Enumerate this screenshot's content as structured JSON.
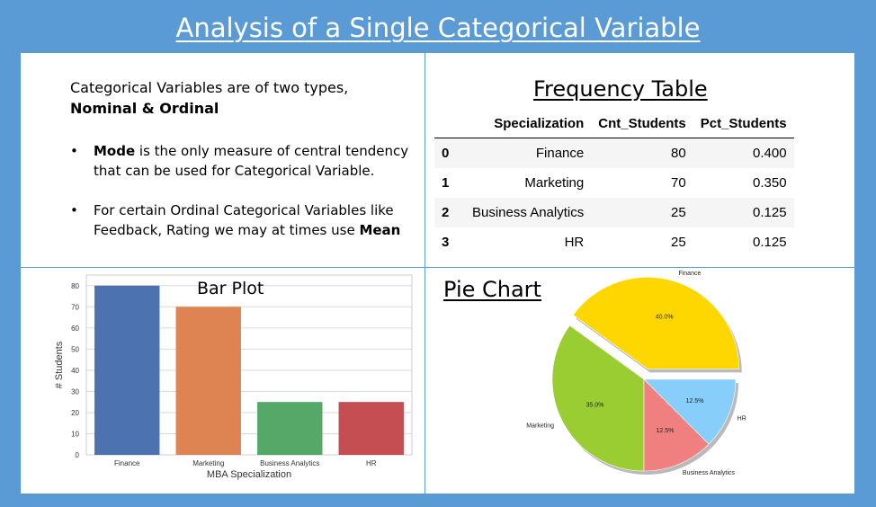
{
  "title": "Analysis of a Single Categorical Variable",
  "intro": {
    "line1": "Categorical Variables are of two types,",
    "line2": "Nominal & Ordinal"
  },
  "bullets": [
    {
      "bold": "Mode",
      "text": " is the only measure of central tendency that can be used for Categorical Variable."
    },
    {
      "pre": "For certain Ordinal Categorical Variables like Feedback, Rating we may at times use ",
      "bold": "Mean"
    }
  ],
  "freq_table": {
    "title": "Frequency Table",
    "columns": [
      "",
      "Specialization",
      "Cnt_Students",
      "Pct_Students"
    ],
    "rows": [
      [
        "0",
        "Finance",
        "80",
        "0.400"
      ],
      [
        "1",
        "Marketing",
        "70",
        "0.350"
      ],
      [
        "2",
        "Business Analytics",
        "25",
        "0.125"
      ],
      [
        "3",
        "HR",
        "25",
        "0.125"
      ]
    ]
  },
  "chart_data": [
    {
      "type": "bar",
      "title": "Bar Plot",
      "categories": [
        "Finance",
        "Marketing",
        "Business Analytics",
        "HR"
      ],
      "values": [
        80,
        70,
        25,
        25
      ],
      "colors": [
        "#4c72b0",
        "#dd8452",
        "#55a868",
        "#c44e52"
      ],
      "xlabel": "MBA Specialization",
      "ylabel": "# Students",
      "ylim": [
        0,
        85
      ],
      "yticks": [
        0,
        10,
        20,
        30,
        40,
        50,
        60,
        70,
        80
      ],
      "grid": true
    },
    {
      "type": "pie",
      "title": "Pie Chart",
      "categories": [
        "Finance",
        "Marketing",
        "Business Analytics",
        "HR"
      ],
      "values": [
        40.0,
        35.0,
        12.5,
        12.5
      ],
      "labels": [
        "40.0%",
        "35.0%",
        "12.5%",
        "12.5%"
      ],
      "colors": [
        "#ffd700",
        "#9acd32",
        "#f08080",
        "#87cefa"
      ],
      "explode": [
        "Finance"
      ],
      "shadow": true
    }
  ]
}
